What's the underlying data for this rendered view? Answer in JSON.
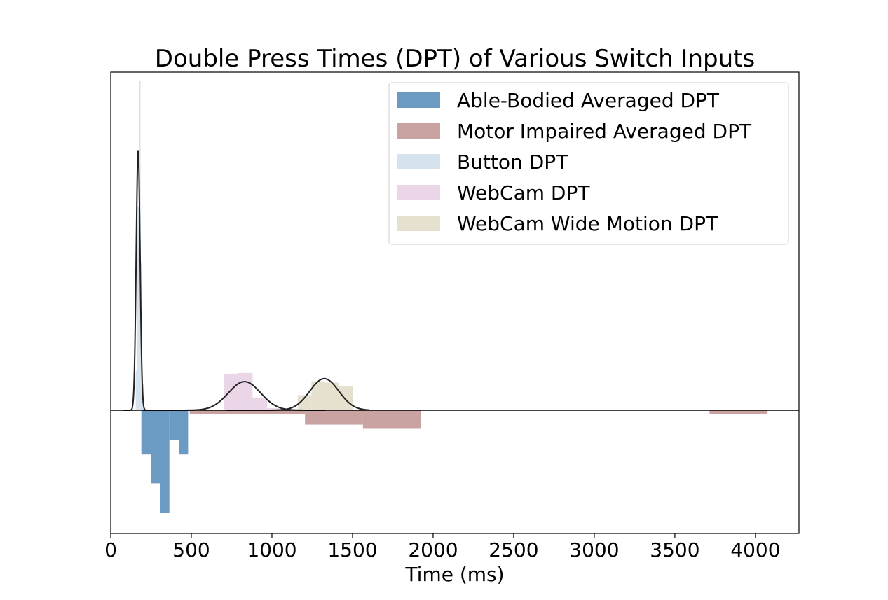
{
  "chart_data": {
    "type": "bar",
    "title": "Double Press Times (DPT) of Various Switch Inputs",
    "xlabel": "Time (ms)",
    "ylabel": "",
    "xlim": [
      0,
      4270
    ],
    "xticks": [
      0,
      500,
      1000,
      1500,
      2000,
      2500,
      3000,
      3500,
      4000
    ],
    "xtick_labels": [
      "0",
      "500",
      "1000",
      "1500",
      "2000",
      "2500",
      "3000",
      "3500",
      "4000"
    ],
    "yticks": "none",
    "grid": false,
    "legend_position": "top-right",
    "note": "",
    "series": [
      {
        "name": "Able-Bodied Averaged DPT",
        "direction": "down",
        "color": "#6b9bc3",
        "bins": [
          {
            "x0": 190,
            "x1": 248,
            "value": 0.43
          },
          {
            "x0": 248,
            "x1": 306,
            "value": 0.71
          },
          {
            "x0": 306,
            "x1": 364,
            "value": 1.0
          },
          {
            "x0": 364,
            "x1": 422,
            "value": 0.29
          },
          {
            "x0": 422,
            "x1": 480,
            "value": 0.43
          }
        ]
      },
      {
        "name": "Motor Impaired Averaged DPT",
        "direction": "down",
        "color": "#c9a3a2",
        "bins": [
          {
            "x0": 490,
            "x1": 1205,
            "value": 0.04
          },
          {
            "x0": 1205,
            "x1": 1565,
            "value": 0.14
          },
          {
            "x0": 1565,
            "x1": 1925,
            "value": 0.18
          },
          {
            "x0": 3715,
            "x1": 4075,
            "value": 0.04
          }
        ]
      },
      {
        "name": "Button DPT",
        "direction": "up",
        "color": "#d6e3ee",
        "bins": [
          {
            "x0": 155,
            "x1": 165,
            "value": 0.12
          },
          {
            "x0": 165,
            "x1": 175,
            "value": 0.62
          },
          {
            "x0": 175,
            "x1": 185,
            "value": 1.0
          },
          {
            "x0": 185,
            "x1": 195,
            "value": 0.45
          },
          {
            "x0": 195,
            "x1": 205,
            "value": 0.08
          }
        ]
      },
      {
        "name": "WebCam DPT",
        "direction": "up",
        "color": "#ebd6e7",
        "bins": [
          {
            "x0": 700,
            "x1": 790,
            "value": 0.111
          },
          {
            "x0": 790,
            "x1": 880,
            "value": 0.113
          },
          {
            "x0": 880,
            "x1": 970,
            "value": 0.038
          },
          {
            "x0": 970,
            "x1": 1060,
            "value": 0.006
          }
        ]
      },
      {
        "name": "WebCam Wide Motion DPT",
        "direction": "up",
        "color": "#e6e0cf",
        "bins": [
          {
            "x0": 1160,
            "x1": 1245,
            "value": 0.046
          },
          {
            "x0": 1245,
            "x1": 1330,
            "value": 0.088
          },
          {
            "x0": 1330,
            "x1": 1415,
            "value": 0.084
          },
          {
            "x0": 1415,
            "x1": 1500,
            "value": 0.073
          }
        ]
      }
    ],
    "fits": [
      {
        "series": "Button DPT",
        "type": "gaussian",
        "mean": 170,
        "sd": 12,
        "peak": 0.79,
        "range": [
          80,
          260
        ]
      },
      {
        "series": "WebCam DPT",
        "type": "gaussian",
        "mean": 830,
        "sd": 100,
        "peak": 0.087,
        "range": [
          200,
          1330
        ]
      },
      {
        "series": "WebCam Wide Motion DPT",
        "type": "gaussian",
        "mean": 1325,
        "sd": 90,
        "peak": 0.096,
        "range": [
          720,
          1600
        ]
      }
    ]
  }
}
